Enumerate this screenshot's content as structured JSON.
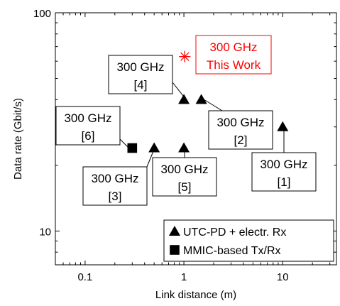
{
  "chart_data": {
    "type": "scatter",
    "xlabel": "Link distance (m)",
    "ylabel": "Data rate (Gbit/s)",
    "x_scale": "log",
    "y_scale": "log",
    "xlim": [
      0.05,
      35
    ],
    "ylim": [
      7,
      100
    ],
    "x_ticks": [
      {
        "value": 0.1,
        "label": "0.1"
      },
      {
        "value": 1,
        "label": "1"
      },
      {
        "value": 10,
        "label": "10"
      }
    ],
    "y_ticks": [
      {
        "value": 10,
        "label": "10"
      },
      {
        "value": 100,
        "label": "100"
      }
    ],
    "grid": false,
    "legend_position": "bottom-right",
    "series": [
      {
        "name": "UTC-PD + electr. Rx",
        "marker": "triangle",
        "color": "#000000",
        "points": [
          {
            "x": 0.5,
            "y": 24
          },
          {
            "x": 1,
            "y": 24
          },
          {
            "x": 1,
            "y": 40
          },
          {
            "x": 1.5,
            "y": 40
          },
          {
            "x": 10,
            "y": 30
          }
        ]
      },
      {
        "name": "MMIC-based Tx/Rx",
        "marker": "square",
        "color": "#000000",
        "points": [
          {
            "x": 0.3,
            "y": 24
          }
        ]
      },
      {
        "name": "",
        "marker": "asterisk",
        "color": "#ff0000",
        "points": [
          {
            "x": 1.02,
            "y": 63
          }
        ]
      }
    ],
    "annotations": [
      {
        "line1": "300 GHz",
        "line2": "This Work",
        "color": "#ff0000"
      },
      {
        "line1": "300 GHz",
        "line2": "[4]",
        "color": "#000000"
      },
      {
        "line1": "300 GHz",
        "line2": "[6]",
        "color": "#000000"
      },
      {
        "line1": "300 GHz",
        "line2": "[2]",
        "color": "#000000"
      },
      {
        "line1": "300 GHz",
        "line2": "[3]",
        "color": "#000000"
      },
      {
        "line1": "300 GHz",
        "line2": "[5]",
        "color": "#000000"
      },
      {
        "line1": "300 GHz",
        "line2": "[1]",
        "color": "#000000"
      }
    ]
  }
}
